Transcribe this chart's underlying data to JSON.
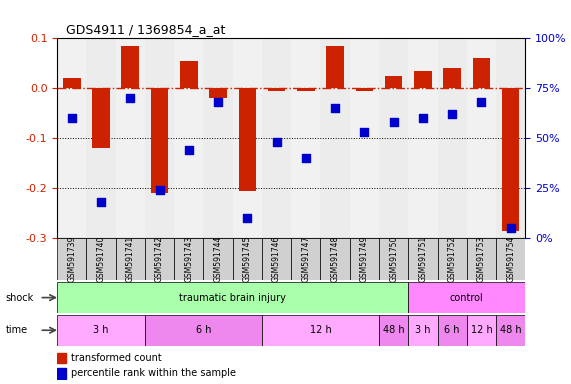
{
  "title": "GDS4911 / 1369854_a_at",
  "samples": [
    "GSM591739",
    "GSM591740",
    "GSM591741",
    "GSM591742",
    "GSM591743",
    "GSM591744",
    "GSM591745",
    "GSM591746",
    "GSM591747",
    "GSM591748",
    "GSM591749",
    "GSM591750",
    "GSM591751",
    "GSM591752",
    "GSM591753",
    "GSM591754"
  ],
  "bar_values": [
    0.02,
    -0.12,
    0.085,
    -0.21,
    0.055,
    -0.02,
    -0.205,
    -0.005,
    -0.005,
    0.085,
    -0.005,
    0.025,
    0.035,
    0.04,
    0.06,
    -0.285
  ],
  "dot_values_pct": [
    60,
    18,
    70,
    24,
    44,
    68,
    10,
    48,
    40,
    65,
    53,
    58,
    60,
    62,
    68,
    5
  ],
  "ylim_left": [
    -0.3,
    0.1
  ],
  "ylim_right": [
    0,
    100
  ],
  "bar_color": "#cc2200",
  "dot_color": "#0000cc",
  "hline_y": 0.0,
  "hline_color": "#cc2200",
  "dotted_lines": [
    -0.1,
    -0.2
  ],
  "shock_row": [
    {
      "label": "traumatic brain injury",
      "start": 0,
      "end": 12,
      "color": "#aaffaa"
    },
    {
      "label": "control",
      "start": 12,
      "end": 16,
      "color": "#ff88ff"
    }
  ],
  "time_row": [
    {
      "label": "3 h",
      "start": 0,
      "end": 3,
      "color": "#ffaaff"
    },
    {
      "label": "6 h",
      "start": 3,
      "end": 7,
      "color": "#ee88ee"
    },
    {
      "label": "12 h",
      "start": 7,
      "end": 11,
      "color": "#ffaaff"
    },
    {
      "label": "48 h",
      "start": 11,
      "end": 12,
      "color": "#ee88ee"
    },
    {
      "label": "3 h",
      "start": 12,
      "end": 13,
      "color": "#ffaaff"
    },
    {
      "label": "6 h",
      "start": 13,
      "end": 14,
      "color": "#ee88ee"
    },
    {
      "label": "12 h",
      "start": 14,
      "end": 15,
      "color": "#ffaaff"
    },
    {
      "label": "48 h",
      "start": 15,
      "end": 16,
      "color": "#ee88ee"
    }
  ],
  "legend_items": [
    {
      "label": "transformed count",
      "color": "#cc2200",
      "marker": "s"
    },
    {
      "label": "percentile rank within the sample",
      "color": "#0000cc",
      "marker": "s"
    }
  ],
  "background_color": "#ffffff",
  "tick_color_left": "#cc2200",
  "tick_color_right": "#0000cc"
}
